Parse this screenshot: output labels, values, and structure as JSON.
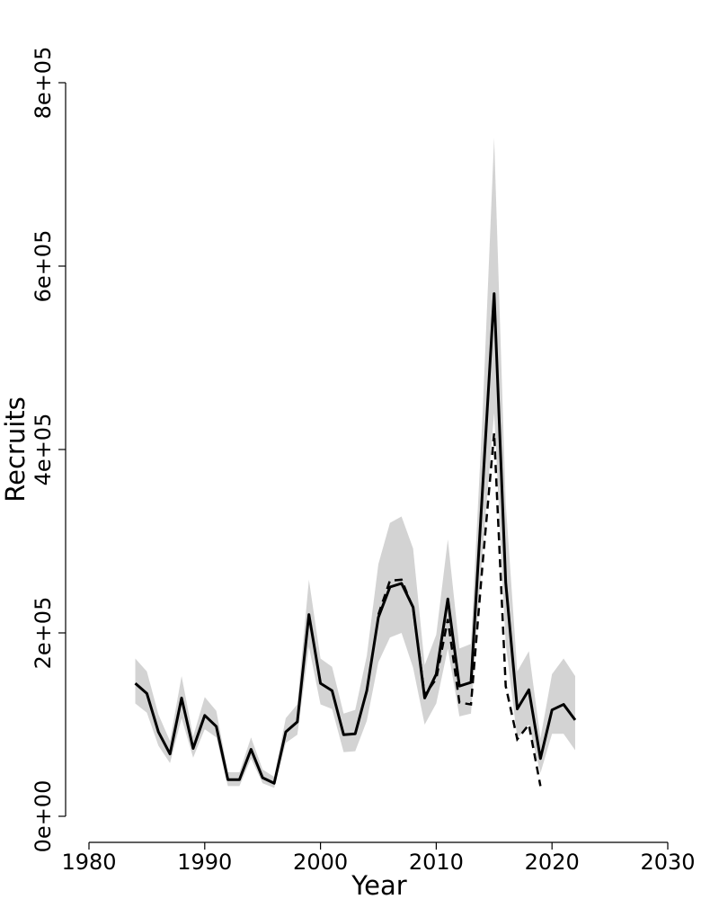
{
  "chart_data": {
    "type": "line",
    "xlabel": "Year",
    "ylabel": "Recruits",
    "xlim": [
      1980,
      2030
    ],
    "ylim": [
      0,
      800000
    ],
    "x_ticks": [
      {
        "value": 1980,
        "label": "1980"
      },
      {
        "value": 1990,
        "label": "1990"
      },
      {
        "value": 2000,
        "label": "2000"
      },
      {
        "value": 2010,
        "label": "2010"
      },
      {
        "value": 2020,
        "label": "2020"
      },
      {
        "value": 2030,
        "label": "2030"
      }
    ],
    "y_ticks": [
      {
        "value": 0,
        "label": "0e+00"
      },
      {
        "value": 200000,
        "label": "2e+05"
      },
      {
        "value": 400000,
        "label": "4e+05"
      },
      {
        "value": 600000,
        "label": "6e+05"
      },
      {
        "value": 800000,
        "label": "8e+05"
      }
    ],
    "grid": false,
    "band_color": "#d3d3d3",
    "line_color": "#000000",
    "series": [
      {
        "style": "solid",
        "x": [
          1984,
          1985,
          1986,
          1987,
          1988,
          1989,
          1990,
          1991,
          1992,
          1993,
          1994,
          1995,
          1996,
          1997,
          1998,
          1999,
          2000,
          2001,
          2002,
          2003,
          2004,
          2005,
          2006,
          2007,
          2008,
          2009,
          2010,
          2011,
          2012,
          2013,
          2014,
          2015,
          2016,
          2017,
          2018,
          2019,
          2020,
          2021,
          2022
        ],
        "values": [
          145000,
          134000,
          92000,
          68000,
          129000,
          74000,
          110000,
          98000,
          40000,
          40000,
          73000,
          42000,
          36000,
          92000,
          103000,
          220000,
          145000,
          137000,
          89000,
          90000,
          137000,
          217000,
          250000,
          254000,
          228000,
          129000,
          155000,
          237000,
          142000,
          146000,
          357000,
          570000,
          255000,
          117000,
          138000,
          63000,
          116000,
          122000,
          105000
        ]
      },
      {
        "style": "dashed",
        "x": [
          2005,
          2006,
          2007,
          2008,
          2009,
          2010,
          2011,
          2012,
          2013,
          2014,
          2015,
          2016,
          2017,
          2018,
          2019
        ],
        "values": [
          220000,
          257000,
          258000,
          227000,
          132000,
          150000,
          215000,
          124000,
          122000,
          275000,
          418000,
          142000,
          84000,
          100000,
          33000
        ]
      }
    ],
    "band": {
      "x": [
        1984,
        1985,
        1986,
        1987,
        1988,
        1989,
        1990,
        1991,
        1992,
        1993,
        1994,
        1995,
        1996,
        1997,
        1998,
        1999,
        2000,
        2001,
        2002,
        2003,
        2004,
        2005,
        2006,
        2007,
        2008,
        2009,
        2010,
        2011,
        2012,
        2013,
        2014,
        2015,
        2016,
        2017,
        2018,
        2019,
        2020,
        2021,
        2022
      ],
      "lower": [
        123000,
        113000,
        77000,
        58000,
        107000,
        64000,
        95000,
        86000,
        33000,
        33000,
        63000,
        36000,
        31000,
        80000,
        89000,
        185000,
        122000,
        117000,
        70000,
        71000,
        104000,
        168000,
        195000,
        200000,
        162000,
        100000,
        123000,
        183000,
        109000,
        112000,
        290000,
        440000,
        188000,
        85000,
        100000,
        47000,
        90000,
        90000,
        72000
      ],
      "upper": [
        172000,
        158000,
        111000,
        82000,
        153000,
        87000,
        130000,
        115000,
        48000,
        48000,
        86000,
        51000,
        43000,
        107000,
        122000,
        258000,
        172000,
        163000,
        112000,
        116000,
        175000,
        275000,
        320000,
        327000,
        292000,
        165000,
        198000,
        302000,
        183000,
        188000,
        438000,
        740000,
        342000,
        158000,
        180000,
        85000,
        155000,
        172000,
        153000
      ]
    }
  }
}
